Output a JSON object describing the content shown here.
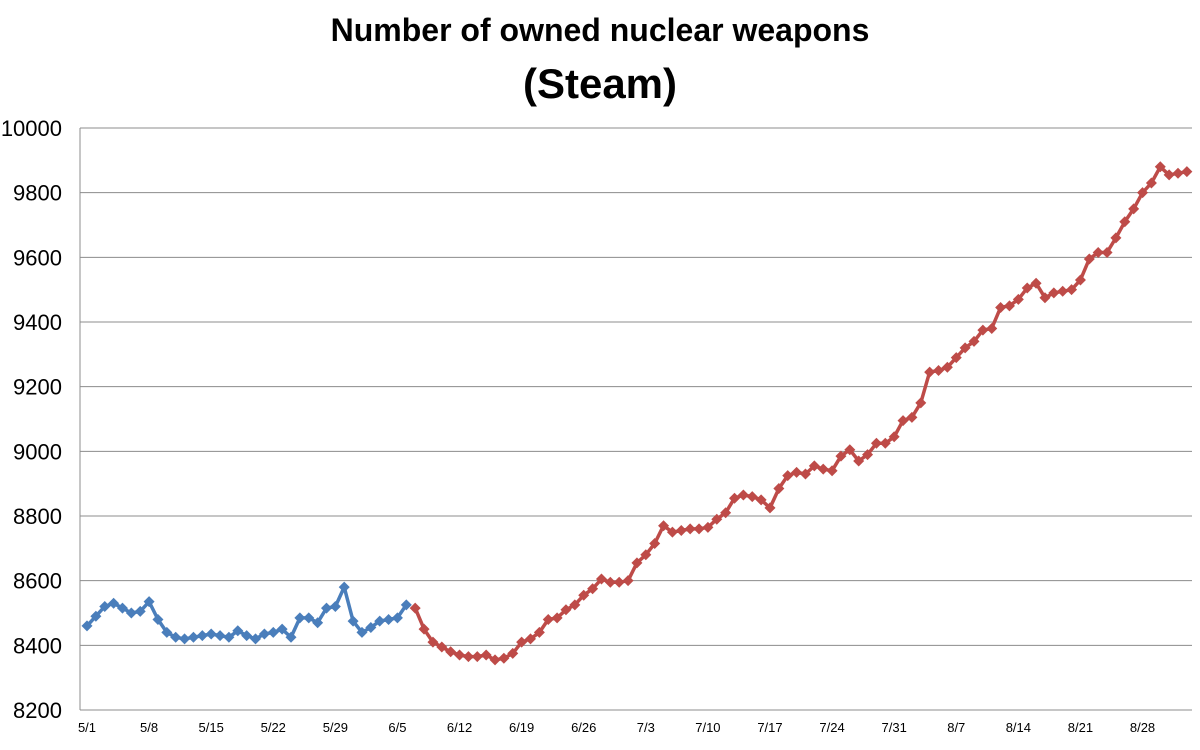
{
  "chart_data": {
    "type": "line",
    "title": "Number of owned nuclear weapons",
    "subtitle": "(Steam)",
    "xlabel": "",
    "ylabel": "",
    "ylim": [
      8200,
      10000
    ],
    "y_ticks": [
      8200,
      8400,
      8600,
      8800,
      9000,
      9200,
      9400,
      9600,
      9800,
      10000
    ],
    "x_tick_labels": [
      "5/1",
      "5/8",
      "5/15",
      "5/22",
      "5/29",
      "6/5",
      "6/12",
      "6/19",
      "6/26",
      "7/3",
      "7/10",
      "7/17",
      "7/24",
      "7/31",
      "8/7",
      "8/14",
      "8/21",
      "8/28"
    ],
    "grid": "horizontal",
    "legend": "none",
    "series": [
      {
        "color": "#4a7ebb",
        "marker": "diamond",
        "start": "5/1",
        "values": [
          8460,
          8490,
          8520,
          8530,
          8515,
          8500,
          8505,
          8535,
          8480,
          8440,
          8425,
          8420,
          8425,
          8430,
          8435,
          8430,
          8425,
          8445,
          8430,
          8420,
          8435,
          8440,
          8450,
          8425,
          8485,
          8485,
          8470,
          8515,
          8520,
          8580,
          8475,
          8440,
          8455,
          8475,
          8480,
          8485,
          8525
        ]
      },
      {
        "color": "#be4b48",
        "marker": "diamond",
        "start": "6/7",
        "values": [
          8515,
          8450,
          8410,
          8395,
          8380,
          8370,
          8365,
          8365,
          8370,
          8355,
          8360,
          8375,
          8410,
          8420,
          8440,
          8480,
          8485,
          8510,
          8525,
          8555,
          8575,
          8605,
          8595,
          8595,
          8600,
          8655,
          8680,
          8715,
          8770,
          8750,
          8755,
          8760,
          8760,
          8765,
          8790,
          8810,
          8855,
          8865,
          8860,
          8850,
          8825,
          8885,
          8925,
          8935,
          8930,
          8955,
          8945,
          8940,
          8985,
          9005,
          8970,
          8990,
          9025,
          9025,
          9045,
          9095,
          9105,
          9150,
          9245,
          9250,
          9260,
          9290,
          9320,
          9340,
          9375,
          9380,
          9445,
          9450,
          9470,
          9505,
          9520,
          9475,
          9490,
          9495,
          9500,
          9530,
          9595,
          9615,
          9615,
          9660,
          9710,
          9750,
          9800,
          9830,
          9880,
          9855,
          9860,
          9865
        ]
      }
    ]
  }
}
